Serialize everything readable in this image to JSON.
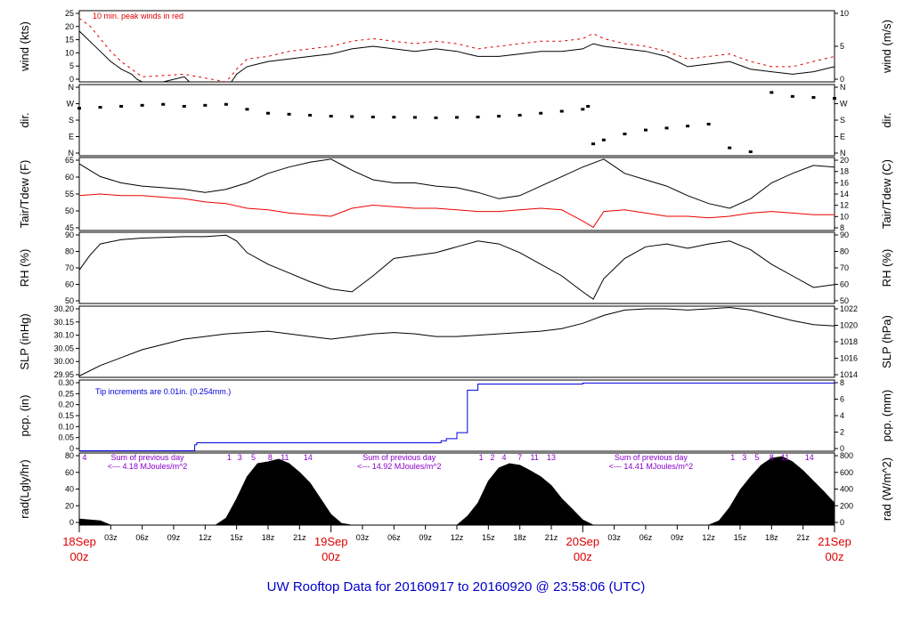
{
  "footer": {
    "title": "UW Rooftop Data for 20160917  to  20160920 @ 23:58:06  (UTC)"
  },
  "colors": {
    "main": "#000000",
    "gust": "#dd0000",
    "dewpoint": "#ee0000",
    "precip": "#0000dd",
    "radnote": "#8800cc",
    "footer": "#0000cc",
    "date": "#dd0000"
  },
  "chart_data": [
    {
      "type": "line",
      "ylabel_left": "wind (kts)",
      "ylabel_right": "wind (m/s)",
      "annotation": "10 min. peak winds in red",
      "ylim": [
        0,
        28
      ],
      "yticks_left": [
        "0",
        "5",
        "10",
        "15",
        "20",
        "25"
      ],
      "yticks_right": [
        "0",
        "5",
        "10"
      ],
      "series": [
        {
          "name": "wind",
          "x": [
            0,
            0.5,
            1,
            2,
            3,
            4,
            5,
            5.5,
            6,
            8,
            10,
            10.5,
            12,
            14,
            14.5,
            15,
            16,
            17,
            18,
            20,
            22,
            24,
            26,
            28,
            30,
            32,
            34,
            36,
            37,
            38,
            39,
            40,
            42,
            44,
            46,
            48,
            49,
            50,
            52,
            54,
            56,
            58,
            60,
            62,
            64,
            66,
            68,
            70,
            72
          ],
          "y": [
            20,
            18,
            16,
            12,
            8,
            5,
            3,
            1,
            0,
            0,
            2,
            0,
            0,
            0,
            0,
            3,
            6,
            7,
            8,
            9,
            10,
            11,
            13,
            14,
            13,
            12,
            13,
            12,
            11,
            10,
            10,
            10,
            11,
            12,
            12,
            13,
            15,
            14,
            13,
            12,
            10,
            6,
            7,
            8,
            5,
            4,
            3,
            4,
            6
          ]
        },
        {
          "name": "peak",
          "x": [
            0,
            1,
            2,
            3,
            4,
            5,
            6,
            10,
            14,
            15,
            16,
            18,
            20,
            22,
            24,
            26,
            28,
            30,
            32,
            34,
            36,
            38,
            40,
            42,
            44,
            46,
            48,
            49,
            50,
            52,
            54,
            56,
            58,
            60,
            62,
            64,
            66,
            68,
            70,
            72
          ],
          "y": [
            25,
            22,
            17,
            12,
            8,
            5,
            2,
            3,
            0,
            5,
            9,
            10,
            12,
            13,
            14,
            16,
            17,
            16,
            15,
            16,
            15,
            13,
            14,
            15,
            16,
            16,
            17,
            19,
            17,
            15,
            14,
            12,
            9,
            10,
            11,
            8,
            6,
            6,
            8,
            10
          ]
        }
      ]
    },
    {
      "type": "scatter",
      "ylabel_left": "dir.",
      "ylabel_right": "dir.",
      "ylim": [
        0,
        360
      ],
      "yticks_left": [
        "N",
        "E",
        "S",
        "W",
        "N"
      ],
      "yticks_right": [
        "N",
        "E",
        "S",
        "W",
        "N"
      ],
      "series": [
        {
          "name": "dir",
          "x": [
            0,
            2,
            4,
            6,
            8,
            10,
            12,
            14,
            16,
            18,
            20,
            22,
            24,
            26,
            28,
            30,
            32,
            34,
            36,
            38,
            40,
            42,
            44,
            46,
            48,
            48.5,
            49,
            50,
            52,
            54,
            56,
            58,
            60,
            62,
            64,
            66,
            68,
            70,
            72
          ],
          "y": [
            240,
            245,
            250,
            255,
            260,
            250,
            255,
            260,
            235,
            215,
            210,
            205,
            200,
            198,
            196,
            195,
            194,
            192,
            194,
            196,
            200,
            205,
            215,
            225,
            235,
            250,
            60,
            80,
            110,
            130,
            140,
            150,
            160,
            40,
            20,
            320,
            300,
            295,
            290
          ]
        }
      ]
    },
    {
      "type": "line",
      "ylabel_left": "Tair/Tdew (F)",
      "ylabel_right": "Tair/Tdew (C)",
      "ylim": [
        45,
        68
      ],
      "yticks_left": [
        "45",
        "50",
        "55",
        "60",
        "65"
      ],
      "yticks_right": [
        "8",
        "10",
        "12",
        "14",
        "16",
        "18",
        "20"
      ],
      "series": [
        {
          "name": "Tair",
          "x": [
            0,
            2,
            4,
            6,
            8,
            10,
            12,
            14,
            16,
            18,
            20,
            22,
            24,
            26,
            28,
            30,
            32,
            34,
            36,
            38,
            40,
            42,
            44,
            46,
            48,
            50,
            52,
            54,
            56,
            58,
            60,
            62,
            64,
            66,
            68,
            70,
            72
          ],
          "y": [
            66,
            62,
            60,
            59,
            58.5,
            58,
            57,
            58,
            60,
            63,
            65,
            66.5,
            67.5,
            64,
            61,
            60,
            60,
            59,
            58.5,
            57,
            55,
            56,
            59,
            62,
            65,
            67.5,
            63,
            61,
            59,
            56,
            53.5,
            52,
            55,
            60,
            63,
            65.5,
            65
          ]
        },
        {
          "name": "Tdew",
          "x": [
            0,
            2,
            4,
            6,
            8,
            10,
            12,
            14,
            16,
            18,
            20,
            22,
            24,
            26,
            28,
            30,
            32,
            34,
            36,
            38,
            40,
            42,
            44,
            46,
            48,
            49,
            50,
            52,
            54,
            56,
            58,
            60,
            62,
            64,
            66,
            68,
            70,
            72
          ],
          "y": [
            56,
            56.5,
            56,
            56,
            55.5,
            55,
            54,
            53.5,
            52,
            51.5,
            50.5,
            50,
            49.5,
            52,
            53,
            52.5,
            52,
            52,
            51.5,
            51,
            51,
            51.5,
            52,
            51.5,
            48,
            46,
            51,
            51.5,
            50.5,
            49.5,
            49.5,
            49,
            49.5,
            50.5,
            51,
            50.5,
            50,
            50
          ]
        }
      ]
    },
    {
      "type": "line",
      "ylabel_left": "RH (%)",
      "ylabel_right": "RH (%)",
      "ylim": [
        47,
        96
      ],
      "yticks_left": [
        "50",
        "60",
        "70",
        "80",
        "90"
      ],
      "yticks_right": [
        "50",
        "60",
        "70",
        "80",
        "90"
      ],
      "series": [
        {
          "name": "RH",
          "x": [
            0,
            1,
            2,
            4,
            6,
            8,
            10,
            12,
            14,
            15,
            16,
            18,
            20,
            22,
            24,
            26,
            28,
            30,
            32,
            34,
            36,
            38,
            40,
            42,
            44,
            46,
            48,
            49,
            50,
            52,
            54,
            56,
            58,
            60,
            62,
            64,
            66,
            68,
            70,
            72
          ],
          "y": [
            70,
            80,
            88,
            91,
            92,
            92.5,
            93,
            93,
            94,
            90,
            82,
            74,
            68,
            62,
            57,
            55,
            66,
            78,
            80,
            82,
            86,
            90,
            88,
            82,
            74,
            66,
            55,
            50,
            64,
            78,
            86,
            88,
            85,
            88,
            90,
            84,
            74,
            66,
            58,
            60
          ]
        }
      ]
    },
    {
      "type": "line",
      "ylabel_left": "SLP (inHg)",
      "ylabel_right": "SLP (hPa)",
      "ylim": [
        29.945,
        30.215
      ],
      "yticks_left": [
        "29.95",
        "30.00",
        "30.05",
        "30.10",
        "30.15",
        "30.20"
      ],
      "yticks_right": [
        "1014",
        "1016",
        "1018",
        "1020",
        "1022"
      ],
      "series": [
        {
          "name": "SLP",
          "x": [
            0,
            2,
            4,
            6,
            8,
            10,
            12,
            14,
            16,
            18,
            20,
            22,
            24,
            26,
            28,
            30,
            32,
            34,
            36,
            38,
            40,
            42,
            44,
            46,
            48,
            50,
            52,
            54,
            56,
            58,
            60,
            62,
            64,
            66,
            68,
            70,
            72
          ],
          "y": [
            29.95,
            29.99,
            30.02,
            30.05,
            30.07,
            30.09,
            30.1,
            30.11,
            30.115,
            30.12,
            30.11,
            30.1,
            30.09,
            30.1,
            30.11,
            30.115,
            30.11,
            30.1,
            30.1,
            30.105,
            30.11,
            30.115,
            30.12,
            30.13,
            30.15,
            30.18,
            30.2,
            30.205,
            30.205,
            30.2,
            30.205,
            30.21,
            30.2,
            30.18,
            30.16,
            30.145,
            30.14
          ]
        }
      ]
    },
    {
      "type": "line",
      "ylabel_left": "pcp. (in)",
      "ylabel_right": "pcp. (mm)",
      "annotation": "Tip increments are 0.01in. (0.254mm.)",
      "ylim": [
        -0.002,
        0.35
      ],
      "yticks_left": [
        "0",
        "0.05",
        "0.10",
        "0.15",
        "0.20",
        "0.25",
        "0.30"
      ],
      "yticks_right": [
        "0",
        "2",
        "4",
        "6",
        "8"
      ],
      "series": [
        {
          "name": "precip",
          "x": [
            0,
            8,
            10,
            11,
            11.2,
            33,
            34,
            34.5,
            35,
            36,
            37,
            38,
            40,
            48,
            50,
            72
          ],
          "y": [
            0,
            0,
            0,
            0.03,
            0.04,
            0.04,
            0.04,
            0.05,
            0.06,
            0.09,
            0.3,
            0.33,
            0.33,
            0.335,
            0.335,
            0.335
          ]
        }
      ]
    },
    {
      "type": "area",
      "ylabel_left": "rad(Lgly/hr)",
      "ylabel_right": "rad (W/m^2)",
      "ylim": [
        0,
        82
      ],
      "yticks_left": [
        "0",
        "20",
        "40",
        "60",
        "80"
      ],
      "yticks_right": [
        "0",
        "200",
        "400",
        "600",
        "800"
      ],
      "annotations": [
        {
          "day": 0,
          "text1": "Sum of previous day",
          "text2": "<--- 4.18 MJoules/m^2"
        },
        {
          "day": 1,
          "text1": "Sum of previous day",
          "text2": "<--- 14.92 MJoules/m^2"
        },
        {
          "day": 2,
          "text1": "Sum of previous day",
          "text2": "<--- 14.41 MJoules/m^2"
        }
      ],
      "hour_labels": [
        {
          "x": 0.5,
          "t": "4"
        },
        {
          "x": 14.3,
          "t": "1"
        },
        {
          "x": 15.3,
          "t": "3"
        },
        {
          "x": 16.6,
          "t": "5"
        },
        {
          "x": 18.2,
          "t": "8"
        },
        {
          "x": 19.6,
          "t": "11"
        },
        {
          "x": 21.8,
          "t": "14"
        },
        {
          "x": 38.3,
          "t": "1"
        },
        {
          "x": 39.4,
          "t": "2"
        },
        {
          "x": 40.5,
          "t": "4"
        },
        {
          "x": 42.0,
          "t": "7"
        },
        {
          "x": 43.4,
          "t": "11"
        },
        {
          "x": 45.0,
          "t": "13"
        },
        {
          "x": 62.3,
          "t": "1"
        },
        {
          "x": 63.4,
          "t": "3"
        },
        {
          "x": 64.6,
          "t": "5"
        },
        {
          "x": 66.0,
          "t": "8"
        },
        {
          "x": 67.3,
          "t": "11"
        },
        {
          "x": 69.6,
          "t": "14"
        }
      ],
      "series": [
        {
          "name": "rad",
          "x": [
            0,
            2,
            3,
            13,
            14,
            15,
            16,
            17,
            18,
            19,
            20,
            21,
            22,
            23,
            24,
            25,
            26,
            36,
            37,
            38,
            39,
            40,
            41,
            42,
            43,
            44,
            45,
            46,
            47,
            48,
            49,
            50,
            60,
            61,
            62,
            63,
            64,
            65,
            66,
            67,
            68,
            69,
            70,
            71,
            72
          ],
          "y": [
            7,
            5,
            0,
            0,
            8,
            30,
            55,
            70,
            72,
            75,
            70,
            60,
            48,
            30,
            12,
            2,
            0,
            0,
            10,
            25,
            50,
            65,
            70,
            68,
            62,
            55,
            45,
            30,
            18,
            6,
            0,
            0,
            0,
            5,
            20,
            40,
            55,
            68,
            76,
            78,
            72,
            62,
            50,
            38,
            25
          ]
        }
      ]
    }
  ],
  "xaxis": {
    "hour_ticks": [
      "03z",
      "06z",
      "09z",
      "12z",
      "15z",
      "18z",
      "21z",
      "03z",
      "06z",
      "09z",
      "12z",
      "15z",
      "18z",
      "21z",
      "03z",
      "06z",
      "09z",
      "12z",
      "15z",
      "18z",
      "21z"
    ],
    "dates": [
      {
        "day": "18Sep",
        "z": "00z"
      },
      {
        "day": "19Sep",
        "z": "00z"
      },
      {
        "day": "20Sep",
        "z": "00z"
      },
      {
        "day": "21Sep",
        "z": "00z"
      }
    ]
  }
}
